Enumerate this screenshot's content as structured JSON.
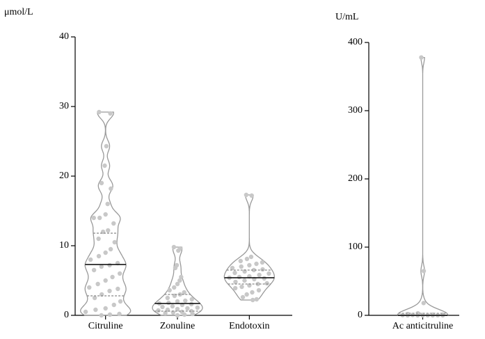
{
  "chart_data": [
    {
      "type": "violin",
      "y_label": "μmol/L",
      "ylim": [
        0,
        40
      ],
      "yticks": [
        0,
        10,
        20,
        30,
        40
      ],
      "categories": [
        "Citruline",
        "Zonuline",
        "Endotoxin"
      ],
      "medians": [
        7.3,
        1.7,
        5.4
      ],
      "q1": [
        2.8,
        0.6,
        4.5
      ],
      "q3": [
        11.8,
        3.0,
        6.5
      ],
      "point_color": "#c8c8c8",
      "outline_color": "#999999",
      "points": [
        [
          29.2,
          29,
          24.3,
          21.5,
          19,
          18.2,
          16,
          14.5,
          14,
          14,
          13.2,
          12.2,
          12,
          11,
          10.5,
          9.5,
          9,
          8.5,
          8,
          7.5,
          7.2,
          7,
          6.5,
          6,
          5.5,
          5,
          4.5,
          4,
          3.8,
          3.5,
          3,
          2.5,
          2,
          1.5,
          1,
          0.8,
          0.5,
          0.2,
          0.1,
          0
        ],
        [
          9.8,
          9.6,
          9.3,
          7.2,
          6.8,
          5.5,
          5,
          4.5,
          4,
          3.6,
          3.3,
          3,
          2.8,
          2.5,
          2.3,
          2.1,
          2,
          1.8,
          1.7,
          1.6,
          1.5,
          1.3,
          1.2,
          1.1,
          1,
          0.9,
          0.8,
          0.7,
          0.6,
          0.5,
          0.4,
          0.3,
          0.2,
          0.1,
          0
        ],
        [
          17.3,
          17.2,
          8.4,
          8.1,
          7.8,
          7.6,
          7.4,
          7.2,
          7,
          6.8,
          6.6,
          6.5,
          6.3,
          6.1,
          6,
          5.8,
          5.6,
          5.5,
          5.4,
          5.3,
          5.2,
          5,
          4.8,
          4.6,
          4.5,
          4.3,
          4.1,
          3.9,
          3.6,
          3.3,
          3,
          2.6,
          2.3,
          2.2
        ]
      ]
    },
    {
      "type": "violin",
      "y_label": "U/mL",
      "ylim": [
        0,
        400
      ],
      "yticks": [
        0,
        100,
        200,
        300,
        400
      ],
      "categories": [
        "Ac anticitruline"
      ],
      "medians": [
        0
      ],
      "q1": [
        0
      ],
      "q3": [
        3
      ],
      "point_color": "#c8c8c8",
      "outline_color": "#999999",
      "points": [
        [
          378,
          65,
          18,
          3,
          2,
          1,
          1,
          0.5,
          0.5,
          0.3,
          0.2,
          0.1,
          0,
          0,
          0,
          0,
          0
        ]
      ]
    }
  ]
}
